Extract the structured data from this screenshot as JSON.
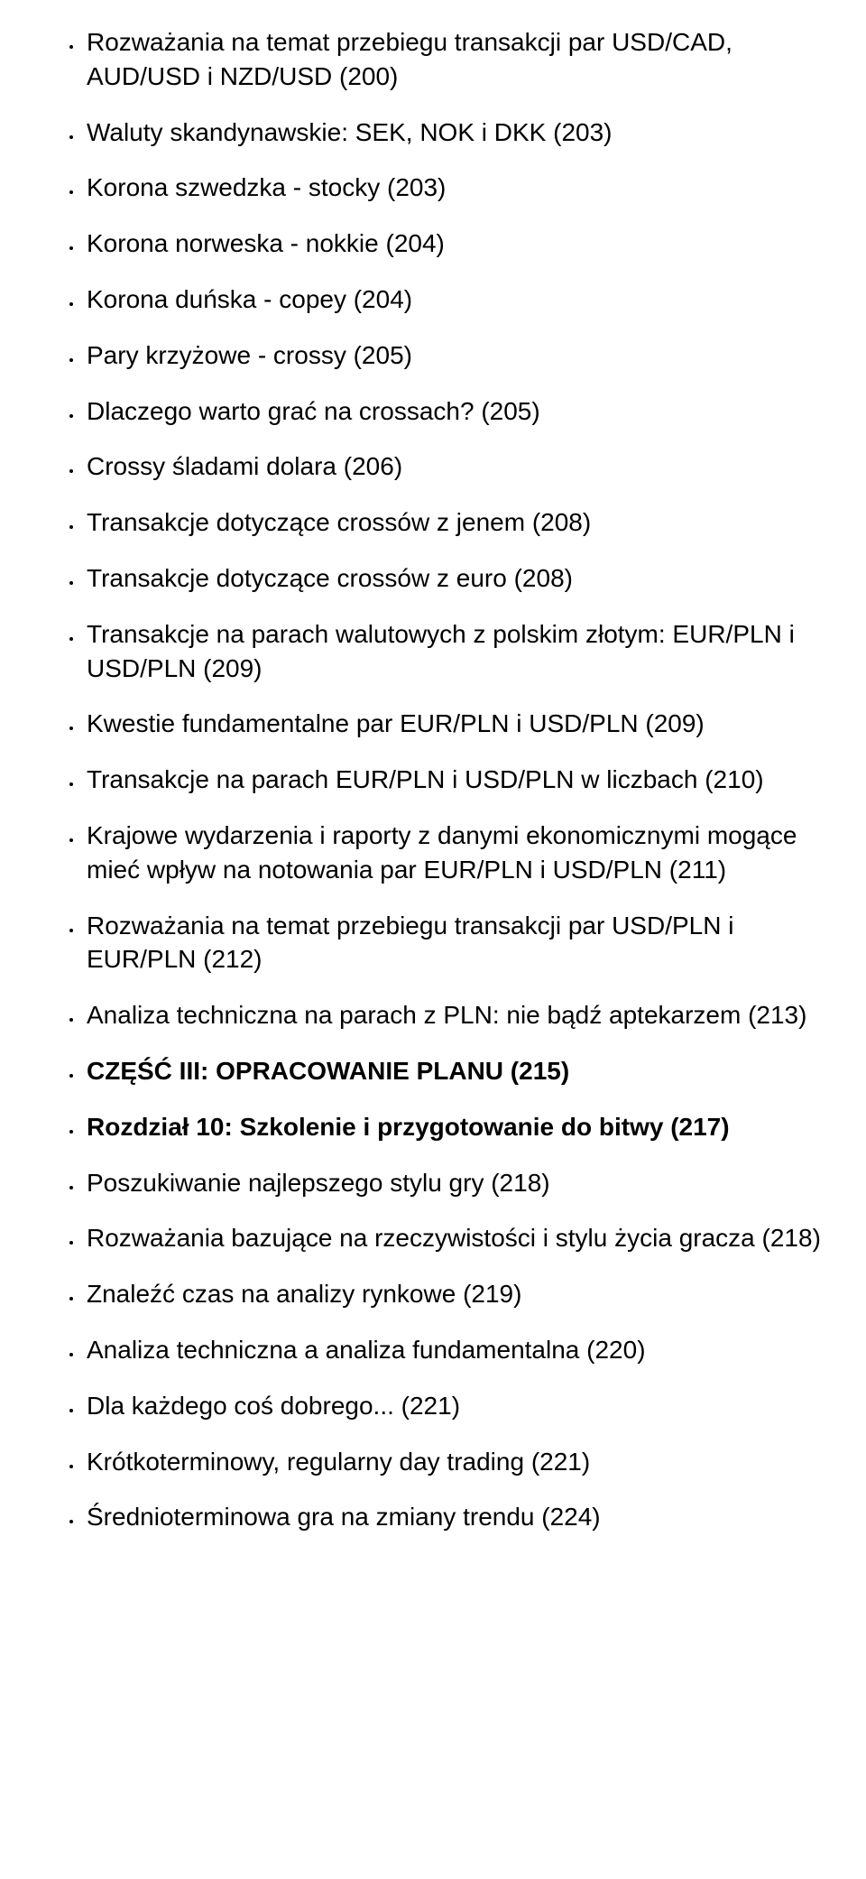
{
  "items": [
    {
      "text": "Rozważania na temat przebiegu transakcji par USD/CAD, AUD/USD i NZD/USD (200)",
      "bold": false
    },
    {
      "text": "Waluty skandynawskie: SEK, NOK i DKK (203)",
      "bold": false
    },
    {
      "text": "Korona szwedzka - stocky (203)",
      "bold": false
    },
    {
      "text": "Korona norweska - nokkie (204)",
      "bold": false
    },
    {
      "text": "Korona duńska - copey (204)",
      "bold": false
    },
    {
      "text": "Pary krzyżowe - crossy (205)",
      "bold": false
    },
    {
      "text": "Dlaczego warto grać na crossach? (205)",
      "bold": false
    },
    {
      "text": "Crossy śladami dolara (206)",
      "bold": false
    },
    {
      "text": "Transakcje dotyczące crossów z jenem (208)",
      "bold": false
    },
    {
      "text": "Transakcje dotyczące crossów z euro (208)",
      "bold": false
    },
    {
      "text": "Transakcje na parach walutowych z polskim złotym: EUR/PLN i USD/PLN (209)",
      "bold": false
    },
    {
      "text": "Kwestie fundamentalne par EUR/PLN i USD/PLN (209)",
      "bold": false
    },
    {
      "text": "Transakcje na parach EUR/PLN i USD/PLN w liczbach (210)",
      "bold": false
    },
    {
      "text": "Krajowe wydarzenia i raporty z danymi ekonomicznymi mogące mieć wpływ na notowania par EUR/PLN i USD/PLN (211)",
      "bold": false
    },
    {
      "text": "Rozważania na temat przebiegu transakcji par USD/PLN i EUR/PLN (212)",
      "bold": false
    },
    {
      "text": "Analiza techniczna na parach z PLN: nie bądź aptekarzem (213)",
      "bold": false
    },
    {
      "text": "CZĘŚĆ III: OPRACOWANIE PLANU (215)",
      "bold": true
    },
    {
      "text": "Rozdział 10: Szkolenie i przygotowanie do bitwy (217)",
      "bold": true
    },
    {
      "text": "Poszukiwanie najlepszego stylu gry (218)",
      "bold": false
    },
    {
      "text": "Rozważania bazujące na rzeczywistości i stylu życia gracza (218)",
      "bold": false
    },
    {
      "text": "Znaleźć czas na analizy rynkowe (219)",
      "bold": false
    },
    {
      "text": "Analiza techniczna a analiza fundamentalna (220)",
      "bold": false
    },
    {
      "text": "Dla każdego coś dobrego... (221)",
      "bold": false
    },
    {
      "text": "Krótkoterminowy, regularny day trading (221)",
      "bold": false
    },
    {
      "text": "Średnioterminowa gra na zmiany trendu (224)",
      "bold": false
    }
  ]
}
